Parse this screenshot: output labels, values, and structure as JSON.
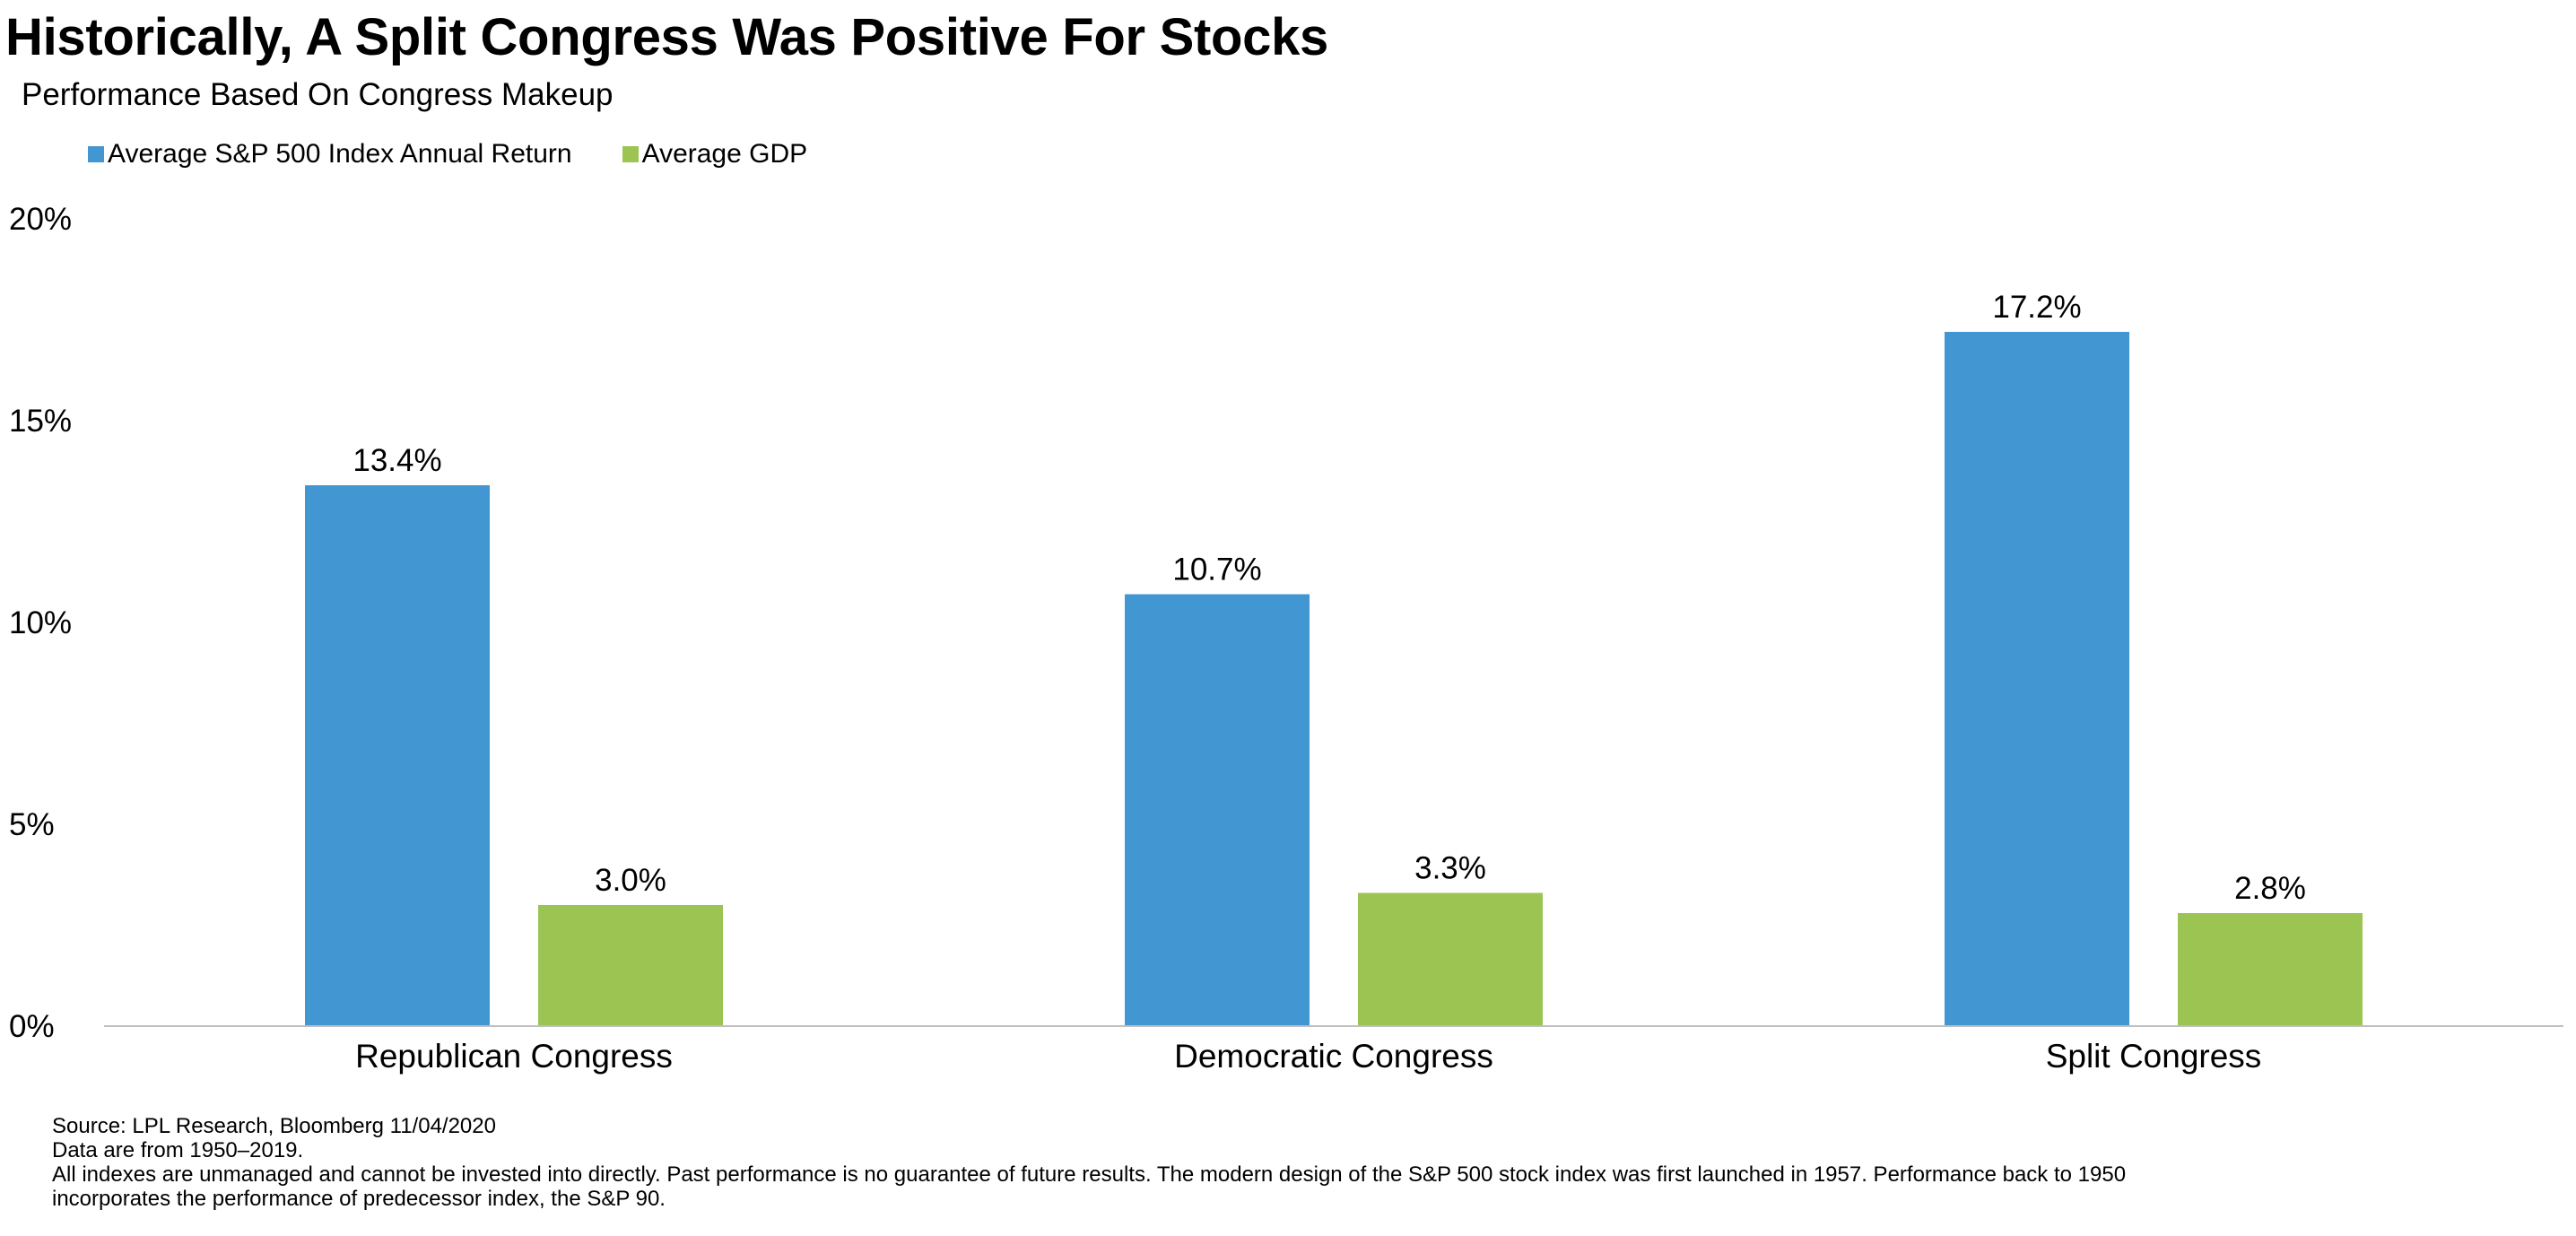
{
  "title": "Historically, A Split Congress Was Positive For Stocks",
  "subtitle": "Performance Based On Congress Makeup",
  "legend": {
    "items": [
      {
        "label": "Average S&P 500 Index Annual Return",
        "color": "#4297D3"
      },
      {
        "label": "Average GDP",
        "color": "#9BC453"
      }
    ],
    "placement": "top-left"
  },
  "chart_data": {
    "type": "bar",
    "categories": [
      "Republican Congress",
      "Democratic Congress",
      "Split Congress"
    ],
    "series": [
      {
        "name": "Average S&P 500 Index Annual Return",
        "values": [
          13.4,
          10.7,
          17.2
        ],
        "labels": [
          "13.4%",
          "10.7%",
          "17.2%"
        ],
        "color": "#4297D3"
      },
      {
        "name": "Average GDP",
        "values": [
          3.0,
          3.3,
          2.8
        ],
        "labels": [
          "3.0%",
          "3.3%",
          "2.8%"
        ],
        "color": "#9BC453"
      }
    ],
    "ylim": [
      0,
      20
    ],
    "yticks": [
      0,
      5,
      10,
      15,
      20
    ],
    "ytick_labels": [
      "0%",
      "5%",
      "10%",
      "15%",
      "20%"
    ],
    "grid": false,
    "xlabel": "",
    "ylabel": ""
  },
  "footnotes": {
    "source": "Source: LPL Research, Bloomberg  11/04/2020",
    "data_range": "Data are from 1950–2019.",
    "disclaimer_line1": "All indexes are unmanaged and cannot be invested into directly. Past performance is no guarantee of future results. The modern design of the S&P 500 stock index was first launched in 1957. Performance back to 1950",
    "disclaimer_line2": "incorporates the performance of predecessor index, the S&P 90."
  }
}
